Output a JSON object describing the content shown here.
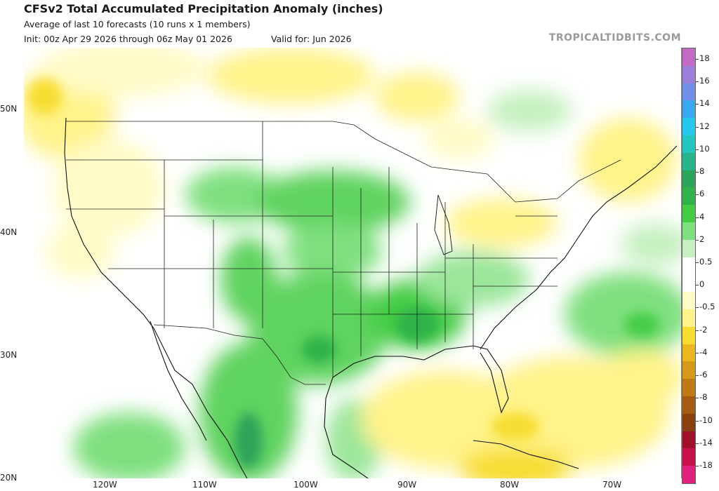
{
  "header": {
    "title": "CFSv2 Total Accumulated Precipitation Anomaly (inches)",
    "subtitle": "Average of last 10 forecasts (10 runs x 1 members)",
    "init": "Init: 00z Apr 29 2026 through 06z May 01 2026",
    "valid": "Valid for: Jun 2026",
    "brand": "TROPICALTIDBITS.COM"
  },
  "map": {
    "lat_labels": [
      "50N",
      "40N",
      "30N",
      "20N"
    ],
    "lon_labels": [
      "120W",
      "110W",
      "100W",
      "90W",
      "80W",
      "70W"
    ]
  },
  "colorbar": {
    "labels": [
      "18",
      "16",
      "14",
      "12",
      "10",
      "8",
      "6",
      "4",
      "2",
      "0.5",
      "0",
      "-0.5",
      "-2",
      "-4",
      "-6",
      "-8",
      "-10",
      "-14",
      "-18"
    ],
    "colors": [
      "#c26bc4",
      "#9b7fd8",
      "#6f8fe8",
      "#3aa8f0",
      "#25c8ee",
      "#22c7c0",
      "#26b58a",
      "#2ea35a",
      "#2fb34a",
      "#44cc44",
      "#7fe07f",
      "#c6f0c0",
      "#ffffff",
      "#ffffff",
      "#fffbc8",
      "#fff38a",
      "#f7dd30",
      "#eab81e",
      "#d59a1a",
      "#bf7a14",
      "#a45c10",
      "#8a3f0e",
      "#a0102a",
      "#c8104a",
      "#e0207a"
    ]
  }
}
